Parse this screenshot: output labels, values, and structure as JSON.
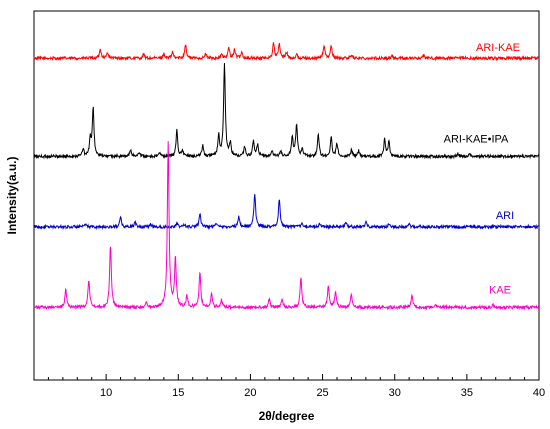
{
  "chart_data": {
    "type": "line",
    "xlabel": "2θ/degree",
    "ylabel": "Intensity(a.u.)",
    "xlim": [
      5,
      40
    ],
    "x_ticks": [
      "10",
      "15",
      "20",
      "25",
      "30",
      "35",
      "40"
    ],
    "y_ticks_shown": false,
    "grid": false,
    "legend": "inline labels",
    "series": [
      {
        "name": "ARI-KAE",
        "color": "#ff0000",
        "baseline": 0.872,
        "noise": 0.004,
        "peaks": [
          {
            "x": 9.6,
            "h": 0.025
          },
          {
            "x": 10.1,
            "h": 0.015
          },
          {
            "x": 12.6,
            "h": 0.01
          },
          {
            "x": 14.0,
            "h": 0.012
          },
          {
            "x": 14.6,
            "h": 0.016
          },
          {
            "x": 15.5,
            "h": 0.038
          },
          {
            "x": 16.9,
            "h": 0.012
          },
          {
            "x": 18.0,
            "h": 0.01
          },
          {
            "x": 18.5,
            "h": 0.028
          },
          {
            "x": 18.9,
            "h": 0.024
          },
          {
            "x": 19.4,
            "h": 0.016
          },
          {
            "x": 21.6,
            "h": 0.04
          },
          {
            "x": 22.0,
            "h": 0.038
          },
          {
            "x": 22.5,
            "h": 0.016
          },
          {
            "x": 23.2,
            "h": 0.01
          },
          {
            "x": 25.1,
            "h": 0.035
          },
          {
            "x": 25.6,
            "h": 0.033
          },
          {
            "x": 27.0,
            "h": 0.01
          },
          {
            "x": 29.8,
            "h": 0.008
          },
          {
            "x": 32.0,
            "h": 0.008
          }
        ]
      },
      {
        "name": "ARI-KAE•IPA",
        "color": "#000000",
        "baseline": 0.606,
        "noise": 0.004,
        "peaks": [
          {
            "x": 8.4,
            "h": 0.02
          },
          {
            "x": 8.9,
            "h": 0.045
          },
          {
            "x": 9.1,
            "h": 0.128
          },
          {
            "x": 11.7,
            "h": 0.018
          },
          {
            "x": 12.3,
            "h": 0.012
          },
          {
            "x": 13.7,
            "h": 0.01
          },
          {
            "x": 14.9,
            "h": 0.07
          },
          {
            "x": 15.3,
            "h": 0.015
          },
          {
            "x": 16.7,
            "h": 0.03
          },
          {
            "x": 17.8,
            "h": 0.055
          },
          {
            "x": 18.2,
            "h": 0.25
          },
          {
            "x": 18.6,
            "h": 0.035
          },
          {
            "x": 19.6,
            "h": 0.025
          },
          {
            "x": 20.2,
            "h": 0.04
          },
          {
            "x": 20.5,
            "h": 0.03
          },
          {
            "x": 21.5,
            "h": 0.012
          },
          {
            "x": 22.1,
            "h": 0.015
          },
          {
            "x": 22.9,
            "h": 0.05
          },
          {
            "x": 23.2,
            "h": 0.088
          },
          {
            "x": 23.6,
            "h": 0.02
          },
          {
            "x": 24.7,
            "h": 0.058
          },
          {
            "x": 25.6,
            "h": 0.05
          },
          {
            "x": 26.0,
            "h": 0.035
          },
          {
            "x": 27.0,
            "h": 0.018
          },
          {
            "x": 27.5,
            "h": 0.015
          },
          {
            "x": 29.3,
            "h": 0.045
          },
          {
            "x": 29.6,
            "h": 0.04
          },
          {
            "x": 34.4,
            "h": 0.008
          },
          {
            "x": 35.2,
            "h": 0.006
          }
        ]
      },
      {
        "name": "ARI",
        "color": "#0000cc",
        "baseline": 0.415,
        "noise": 0.004,
        "peaks": [
          {
            "x": 8.6,
            "h": 0.006
          },
          {
            "x": 11.0,
            "h": 0.025
          },
          {
            "x": 12.0,
            "h": 0.012
          },
          {
            "x": 13.1,
            "h": 0.008
          },
          {
            "x": 14.9,
            "h": 0.008
          },
          {
            "x": 15.4,
            "h": 0.006
          },
          {
            "x": 16.5,
            "h": 0.038
          },
          {
            "x": 17.6,
            "h": 0.01
          },
          {
            "x": 19.2,
            "h": 0.028
          },
          {
            "x": 20.3,
            "h": 0.09
          },
          {
            "x": 22.0,
            "h": 0.075
          },
          {
            "x": 23.6,
            "h": 0.01
          },
          {
            "x": 24.8,
            "h": 0.008
          },
          {
            "x": 26.6,
            "h": 0.014
          },
          {
            "x": 28.0,
            "h": 0.012
          },
          {
            "x": 29.6,
            "h": 0.008
          },
          {
            "x": 31.0,
            "h": 0.006
          }
        ]
      },
      {
        "name": "KAE",
        "color": "#ff00cc",
        "baseline": 0.197,
        "noise": 0.004,
        "peaks": [
          {
            "x": 7.2,
            "h": 0.05
          },
          {
            "x": 8.8,
            "h": 0.075
          },
          {
            "x": 10.3,
            "h": 0.17
          },
          {
            "x": 12.8,
            "h": 0.012
          },
          {
            "x": 14.3,
            "h": 0.445
          },
          {
            "x": 14.8,
            "h": 0.13
          },
          {
            "x": 15.6,
            "h": 0.03
          },
          {
            "x": 16.5,
            "h": 0.095
          },
          {
            "x": 17.3,
            "h": 0.035
          },
          {
            "x": 18.0,
            "h": 0.02
          },
          {
            "x": 21.3,
            "h": 0.022
          },
          {
            "x": 22.2,
            "h": 0.02
          },
          {
            "x": 23.5,
            "h": 0.08
          },
          {
            "x": 25.4,
            "h": 0.058
          },
          {
            "x": 25.9,
            "h": 0.045
          },
          {
            "x": 27.0,
            "h": 0.035
          },
          {
            "x": 31.2,
            "h": 0.03
          },
          {
            "x": 32.8,
            "h": 0.008
          },
          {
            "x": 36.8,
            "h": 0.006
          }
        ]
      }
    ]
  }
}
